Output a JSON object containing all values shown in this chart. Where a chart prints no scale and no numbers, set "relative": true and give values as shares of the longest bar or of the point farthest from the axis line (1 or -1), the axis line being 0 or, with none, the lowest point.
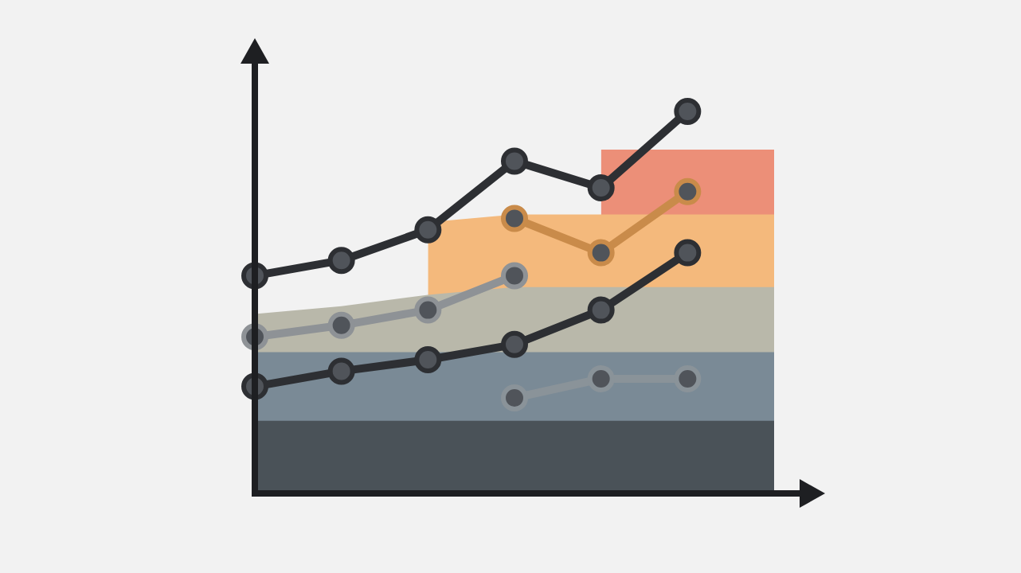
{
  "chart_data": {
    "type": "line",
    "relative": true,
    "marker": "circle",
    "legend": false,
    "tick_labels": false,
    "categories": [
      null,
      null,
      null,
      null,
      null,
      null,
      null
    ],
    "series": [
      {
        "type": "area",
        "marker": "none",
        "color": "#4a5258",
        "values": [
          0.19,
          0.19,
          0.19,
          0.19,
          0.19,
          0.19,
          0.19
        ]
      },
      {
        "type": "area",
        "marker": "none",
        "color": "#7a8a96",
        "values": [
          0.37,
          0.37,
          0.37,
          0.37,
          0.37,
          0.37,
          0.37
        ]
      },
      {
        "type": "area",
        "marker": "none",
        "color": "#b9b8aa",
        "values": [
          0.47,
          0.49,
          0.52,
          0.54,
          0.54,
          0.54,
          0.54
        ]
      },
      {
        "type": "area",
        "marker": "none",
        "color": "#f4b97c",
        "values": [
          null,
          null,
          0.71,
          0.73,
          0.73,
          0.73,
          0.73
        ]
      },
      {
        "type": "area",
        "marker": "none",
        "color": "#ec8f78",
        "values": [
          null,
          null,
          null,
          null,
          0.9,
          0.9,
          0.9
        ]
      },
      {
        "color": "#8a9399",
        "values": [
          null,
          null,
          null,
          0.25,
          0.3,
          0.3,
          null
        ]
      },
      {
        "color": "#2d2f33",
        "values": [
          0.28,
          0.32,
          0.35,
          0.39,
          0.48,
          0.63,
          null
        ]
      },
      {
        "color": "#8e9296",
        "values": [
          0.41,
          0.44,
          0.48,
          0.57,
          null,
          null,
          null
        ]
      },
      {
        "color": "#c98b4a",
        "values": [
          null,
          null,
          null,
          0.72,
          0.63,
          0.79,
          null
        ]
      },
      {
        "color": "#2d2f33",
        "values": [
          0.57,
          0.61,
          0.69,
          0.87,
          0.8,
          1.0,
          null
        ]
      }
    ]
  }
}
